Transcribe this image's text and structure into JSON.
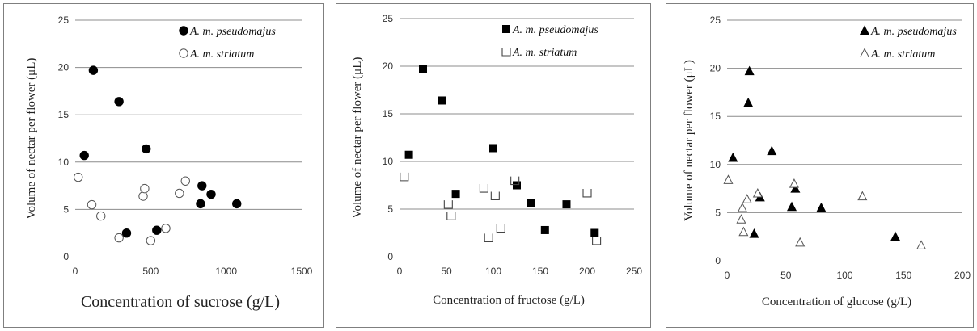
{
  "chart_data": [
    {
      "type": "scatter",
      "xlabel": "Concentration of sucrose (g/L)",
      "ylabel": "Volume of nectar per flower (μL)",
      "xlim": [
        0,
        1500
      ],
      "ylim": [
        0,
        25
      ],
      "xticks": [
        0,
        500,
        1000,
        1500
      ],
      "yticks": [
        0,
        5,
        10,
        15,
        20,
        25
      ],
      "grid": "horizontal",
      "legend_position": "top-right",
      "series": [
        {
          "name": "A. m. pseudomajus",
          "marker": "filled-circle",
          "color": "#000000",
          "points": [
            [
              60,
              10.7
            ],
            [
              120,
              19.7
            ],
            [
              290,
              16.4
            ],
            [
              340,
              2.5
            ],
            [
              470,
              11.4
            ],
            [
              540,
              2.8
            ],
            [
              830,
              5.6
            ],
            [
              840,
              7.5
            ],
            [
              900,
              6.6
            ],
            [
              1070,
              5.6
            ]
          ]
        },
        {
          "name": "A. m. striatum",
          "marker": "open-circle",
          "color": "#000000",
          "points": [
            [
              20,
              8.4
            ],
            [
              110,
              5.5
            ],
            [
              170,
              4.3
            ],
            [
              290,
              2.0
            ],
            [
              450,
              6.4
            ],
            [
              460,
              7.2
            ],
            [
              500,
              1.7
            ],
            [
              600,
              3.0
            ],
            [
              690,
              6.7
            ],
            [
              730,
              8.0
            ]
          ]
        }
      ]
    },
    {
      "type": "scatter",
      "xlabel": "Concentration of fructose (g/L)",
      "ylabel": "Volume of nectar per flower (μL)",
      "xlim": [
        0,
        250
      ],
      "ylim": [
        0,
        25
      ],
      "xticks": [
        0,
        50,
        100,
        150,
        200,
        250
      ],
      "yticks": [
        0,
        5,
        10,
        15,
        20,
        25
      ],
      "grid": "horizontal",
      "legend_position": "top-right",
      "series": [
        {
          "name": "A. m. pseudomajus",
          "marker": "filled-square",
          "color": "#000000",
          "points": [
            [
              10,
              10.7
            ],
            [
              25,
              19.7
            ],
            [
              45,
              16.4
            ],
            [
              60,
              6.6
            ],
            [
              100,
              11.4
            ],
            [
              125,
              7.5
            ],
            [
              140,
              5.6
            ],
            [
              155,
              2.8
            ],
            [
              178,
              5.5
            ],
            [
              208,
              2.5
            ]
          ]
        },
        {
          "name": "A. m. striatum",
          "marker": "open-square",
          "color": "#000000",
          "points": [
            [
              5,
              8.4
            ],
            [
              52,
              5.5
            ],
            [
              55,
              4.3
            ],
            [
              90,
              7.2
            ],
            [
              95,
              2.0
            ],
            [
              102,
              6.4
            ],
            [
              108,
              3.0
            ],
            [
              123,
              8.0
            ],
            [
              200,
              6.7
            ],
            [
              210,
              1.7
            ]
          ]
        }
      ]
    },
    {
      "type": "scatter",
      "xlabel": "Concentration of glucose (g/L)",
      "ylabel": "Volume of nectar per flower (μL)",
      "xlim": [
        0,
        200
      ],
      "ylim": [
        0,
        25
      ],
      "xticks": [
        0,
        50,
        100,
        150,
        200
      ],
      "yticks": [
        0,
        5,
        10,
        15,
        20,
        25
      ],
      "grid": "horizontal",
      "legend_position": "top-right",
      "series": [
        {
          "name": "A. m. pseudomajus",
          "marker": "filled-triangle",
          "color": "#000000",
          "points": [
            [
              5,
              10.7
            ],
            [
              18,
              16.4
            ],
            [
              19,
              19.7
            ],
            [
              23,
              2.8
            ],
            [
              28,
              6.6
            ],
            [
              38,
              11.4
            ],
            [
              55,
              5.6
            ],
            [
              58,
              7.5
            ],
            [
              80,
              5.5
            ],
            [
              143,
              2.5
            ]
          ]
        },
        {
          "name": "A. m. striatum",
          "marker": "open-triangle",
          "color": "#000000",
          "points": [
            [
              1,
              8.4
            ],
            [
              12,
              4.3
            ],
            [
              13,
              5.5
            ],
            [
              14,
              3.0
            ],
            [
              17,
              6.4
            ],
            [
              26,
              7.0
            ],
            [
              57,
              8.0
            ],
            [
              62,
              1.9
            ],
            [
              115,
              6.7
            ],
            [
              165,
              1.6
            ]
          ]
        }
      ]
    }
  ]
}
